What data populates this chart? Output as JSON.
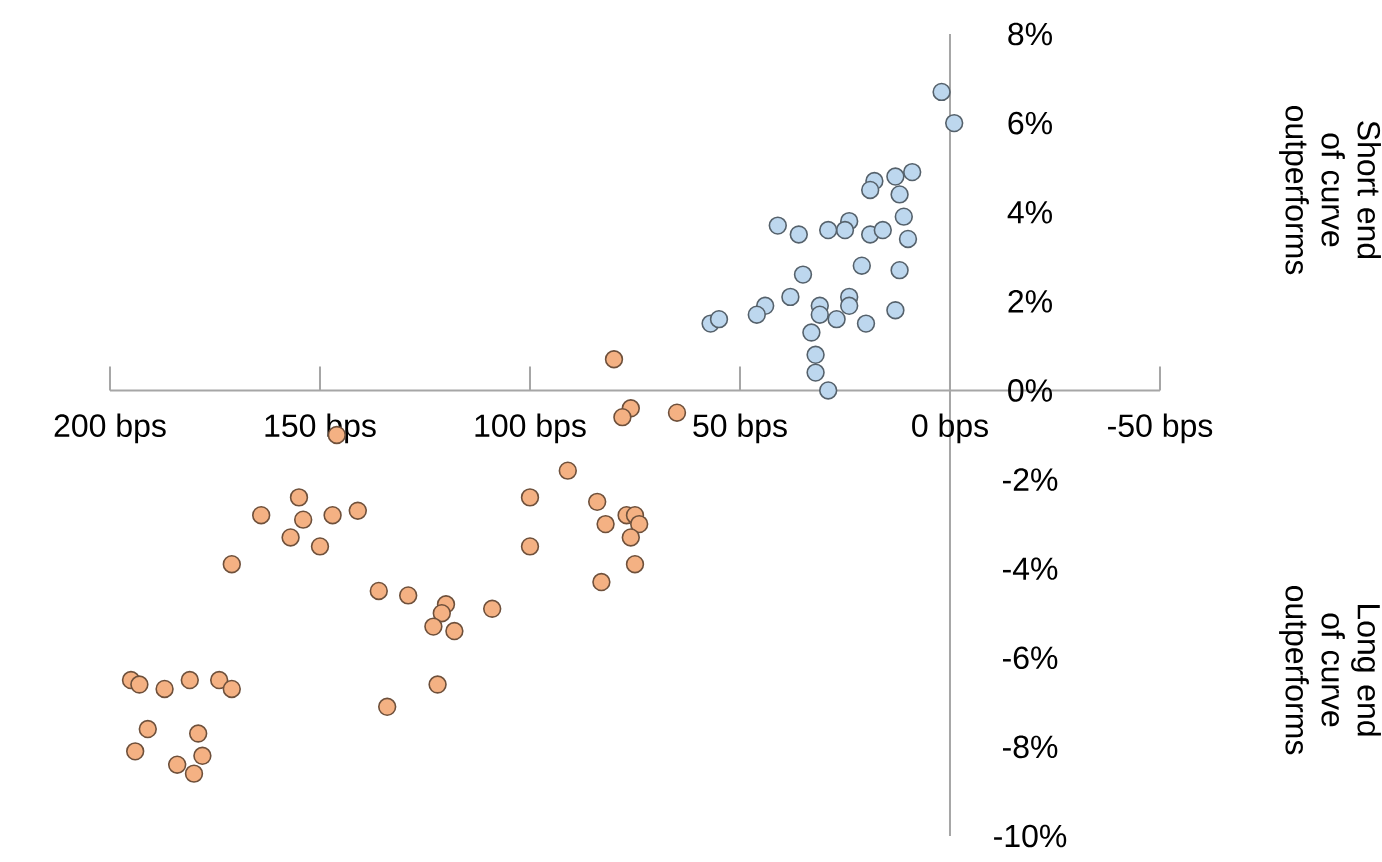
{
  "chart_data": {
    "type": "scatter",
    "marker": "circle",
    "xlim": [
      200,
      -50
    ],
    "ylim": [
      -10,
      8
    ],
    "xticks": [
      {
        "value": 200,
        "label": "200 bps"
      },
      {
        "value": 150,
        "label": "150 bps"
      },
      {
        "value": 100,
        "label": "100 bps"
      },
      {
        "value": 50,
        "label": "50 bps"
      },
      {
        "value": 0,
        "label": "0 bps"
      },
      {
        "value": -50,
        "label": "-50 bps"
      }
    ],
    "yticks": [
      {
        "value": 8,
        "label": "8%"
      },
      {
        "value": 6,
        "label": "6%"
      },
      {
        "value": 4,
        "label": "4%"
      },
      {
        "value": 2,
        "label": "2%"
      },
      {
        "value": 0,
        "label": "0%"
      },
      {
        "value": -2,
        "label": "-2%"
      },
      {
        "value": -4,
        "label": "-4%"
      },
      {
        "value": -6,
        "label": "-6%"
      },
      {
        "value": -8,
        "label": "-8%"
      },
      {
        "value": -10,
        "label": "-10%"
      }
    ],
    "annotations": [
      "Short end of curve outperforms",
      "Long end of curve outperforms"
    ],
    "series": [
      {
        "color": "#bdd7ee",
        "x": [
          2,
          -1,
          9,
          13,
          18,
          19,
          12,
          11,
          10,
          24,
          25,
          29,
          19,
          16,
          41,
          36,
          21,
          12,
          35,
          38,
          44,
          46,
          57,
          55,
          31,
          31,
          27,
          24,
          24,
          13,
          20,
          33,
          32,
          32,
          29
        ],
        "values": [
          6.7,
          6.0,
          4.9,
          4.8,
          4.7,
          4.5,
          4.4,
          3.9,
          3.4,
          3.8,
          3.6,
          3.6,
          3.5,
          3.6,
          3.7,
          3.5,
          2.8,
          2.7,
          2.6,
          2.1,
          1.9,
          1.7,
          1.5,
          1.6,
          1.9,
          1.7,
          1.6,
          2.1,
          1.9,
          1.8,
          1.5,
          1.3,
          0.8,
          0.4,
          0.0
        ]
      },
      {
        "color": "#f4b183",
        "x": [
          146,
          155,
          164,
          154,
          147,
          141,
          157,
          150,
          171,
          136,
          129,
          195,
          193,
          187,
          181,
          174,
          171,
          191,
          194,
          179,
          178,
          184,
          180,
          134,
          80,
          76,
          78,
          65,
          91,
          100,
          84,
          82,
          77,
          75,
          74,
          76,
          100,
          75,
          83,
          120,
          121,
          123,
          118,
          109,
          122
        ],
        "values": [
          -1.0,
          -2.4,
          -2.8,
          -2.9,
          -2.8,
          -2.7,
          -3.3,
          -3.5,
          -3.9,
          -4.5,
          -4.6,
          -6.5,
          -6.6,
          -6.7,
          -6.5,
          -6.5,
          -6.7,
          -7.6,
          -8.1,
          -7.7,
          -8.2,
          -8.4,
          -8.6,
          -7.1,
          0.7,
          -0.4,
          -0.6,
          -0.5,
          -1.8,
          -2.4,
          -2.5,
          -3.0,
          -2.8,
          -2.8,
          -3.0,
          -3.3,
          -3.5,
          -3.9,
          -4.3,
          -4.8,
          -5.0,
          -5.3,
          -5.4,
          -4.9,
          -6.6
        ]
      }
    ]
  }
}
